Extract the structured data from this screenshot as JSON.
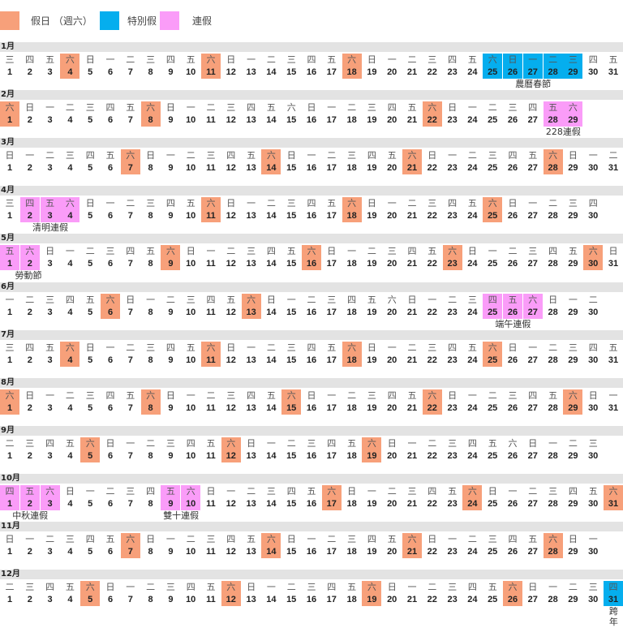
{
  "legend": [
    {
      "label": "假日 （週六）",
      "type": "sat",
      "color": "#f7a07a"
    },
    {
      "label": "特別假",
      "type": "spec",
      "color": "#05aeee"
    },
    {
      "label": "連假",
      "type": "cons",
      "color": "#fa9cf8"
    }
  ],
  "weekdays": [
    "日",
    "一",
    "二",
    "三",
    "四",
    "五",
    "六"
  ],
  "months": [
    {
      "name": "1月",
      "first": 3,
      "days": 31,
      "sat": [
        4,
        11,
        18
      ],
      "spec": [
        25,
        26,
        27,
        28,
        29
      ],
      "cons": [],
      "labels": [
        {
          "text": "農曆春節",
          "from": 25,
          "to": 29
        }
      ]
    },
    {
      "name": "2月",
      "first": 6,
      "days": 29,
      "sat": [
        1,
        8,
        22
      ],
      "spec": [],
      "cons": [
        28,
        29
      ],
      "labels": [
        {
          "text": "228連假",
          "from": 28,
          "to": 29
        }
      ]
    },
    {
      "name": "3月",
      "first": 0,
      "days": 31,
      "sat": [
        7,
        14,
        21,
        28
      ],
      "spec": [],
      "cons": [],
      "labels": []
    },
    {
      "name": "4月",
      "first": 3,
      "days": 30,
      "sat": [
        11,
        18,
        25
      ],
      "spec": [],
      "cons": [
        2,
        3,
        4
      ],
      "labels": [
        {
          "text": "清明連假",
          "from": 2,
          "to": 4
        }
      ]
    },
    {
      "name": "5月",
      "first": 5,
      "days": 31,
      "sat": [
        9,
        16,
        23,
        30
      ],
      "spec": [],
      "cons": [
        1,
        2
      ],
      "labels": [
        {
          "text": "勞動節",
          "from": 1,
          "to": 2
        }
      ]
    },
    {
      "name": "6月",
      "first": 1,
      "days": 30,
      "sat": [
        6,
        13
      ],
      "spec": [],
      "cons": [
        25,
        26,
        27
      ],
      "labels": [
        {
          "text": "端午連假",
          "from": 25,
          "to": 27
        }
      ]
    },
    {
      "name": "7月",
      "first": 3,
      "days": 31,
      "sat": [
        4,
        11,
        18,
        25
      ],
      "spec": [],
      "cons": [],
      "labels": []
    },
    {
      "name": "8月",
      "first": 6,
      "days": 31,
      "sat": [
        1,
        8,
        15,
        22,
        29
      ],
      "spec": [],
      "cons": [],
      "labels": []
    },
    {
      "name": "9月",
      "first": 2,
      "days": 30,
      "sat": [
        5,
        12,
        19
      ],
      "spec": [],
      "cons": [],
      "labels": []
    },
    {
      "name": "10月",
      "first": 4,
      "days": 31,
      "sat": [
        17,
        24,
        31
      ],
      "spec": [],
      "cons": [
        1,
        2,
        3,
        9,
        10
      ],
      "labels": [
        {
          "text": "中秋連假",
          "from": 1,
          "to": 3
        },
        {
          "text": "雙十連假",
          "from": 9,
          "to": 10
        }
      ]
    },
    {
      "name": "11月",
      "first": 0,
      "days": 30,
      "sat": [
        7,
        14,
        21,
        28
      ],
      "spec": [],
      "cons": [],
      "labels": []
    },
    {
      "name": "12月",
      "first": 2,
      "days": 31,
      "sat": [
        5,
        12,
        19,
        26
      ],
      "spec": [
        31
      ],
      "cons": [],
      "labels": [
        {
          "text": "跨年",
          "from": 31,
          "to": 31
        }
      ]
    }
  ]
}
